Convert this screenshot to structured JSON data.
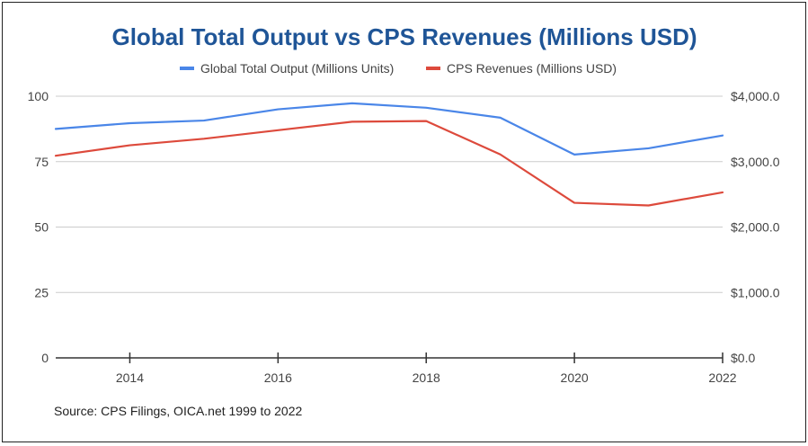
{
  "chart_data": {
    "type": "line",
    "title": "Global Total Output vs CPS Revenues (Millions USD)",
    "x": [
      2013,
      2014,
      2015,
      2016,
      2017,
      2018,
      2019,
      2020,
      2021,
      2022
    ],
    "x_ticks": [
      "2014",
      "2016",
      "2018",
      "2020",
      "2022"
    ],
    "x_tick_values": [
      2014,
      2016,
      2018,
      2020,
      2022
    ],
    "xlim": [
      2013,
      2022
    ],
    "series": [
      {
        "name": "Global Total Output (Millions Units)",
        "axis": "left",
        "color": "#4a86e8",
        "values": [
          87.5,
          89.7,
          90.7,
          95.0,
          97.3,
          95.6,
          91.8,
          77.7,
          80.1,
          85.0
        ]
      },
      {
        "name": "CPS Revenues (Millions USD)",
        "axis": "right",
        "color": "#dd4a3c",
        "values": [
          3090,
          3250,
          3350,
          3480,
          3610,
          3620,
          3110,
          2370,
          2330,
          2530
        ]
      }
    ],
    "y_left": {
      "ticks": [
        "0",
        "25",
        "50",
        "75",
        "100"
      ],
      "tick_values": [
        0,
        25,
        50,
        75,
        100
      ],
      "ylim": [
        0,
        100
      ]
    },
    "y_right": {
      "ticks": [
        "$0.0",
        "$1,000.0",
        "$2,000.0",
        "$3,000.0",
        "$4,000.0"
      ],
      "tick_values": [
        0,
        1000,
        2000,
        3000,
        4000
      ],
      "ylim": [
        0,
        4000
      ]
    },
    "grid": true,
    "legend": "top-center",
    "source": "Source: CPS Filings, OICA.net 1999 to 2022"
  },
  "colors": {
    "title": "#1f5597",
    "grid": "#cccccc",
    "axis": "#333333"
  }
}
